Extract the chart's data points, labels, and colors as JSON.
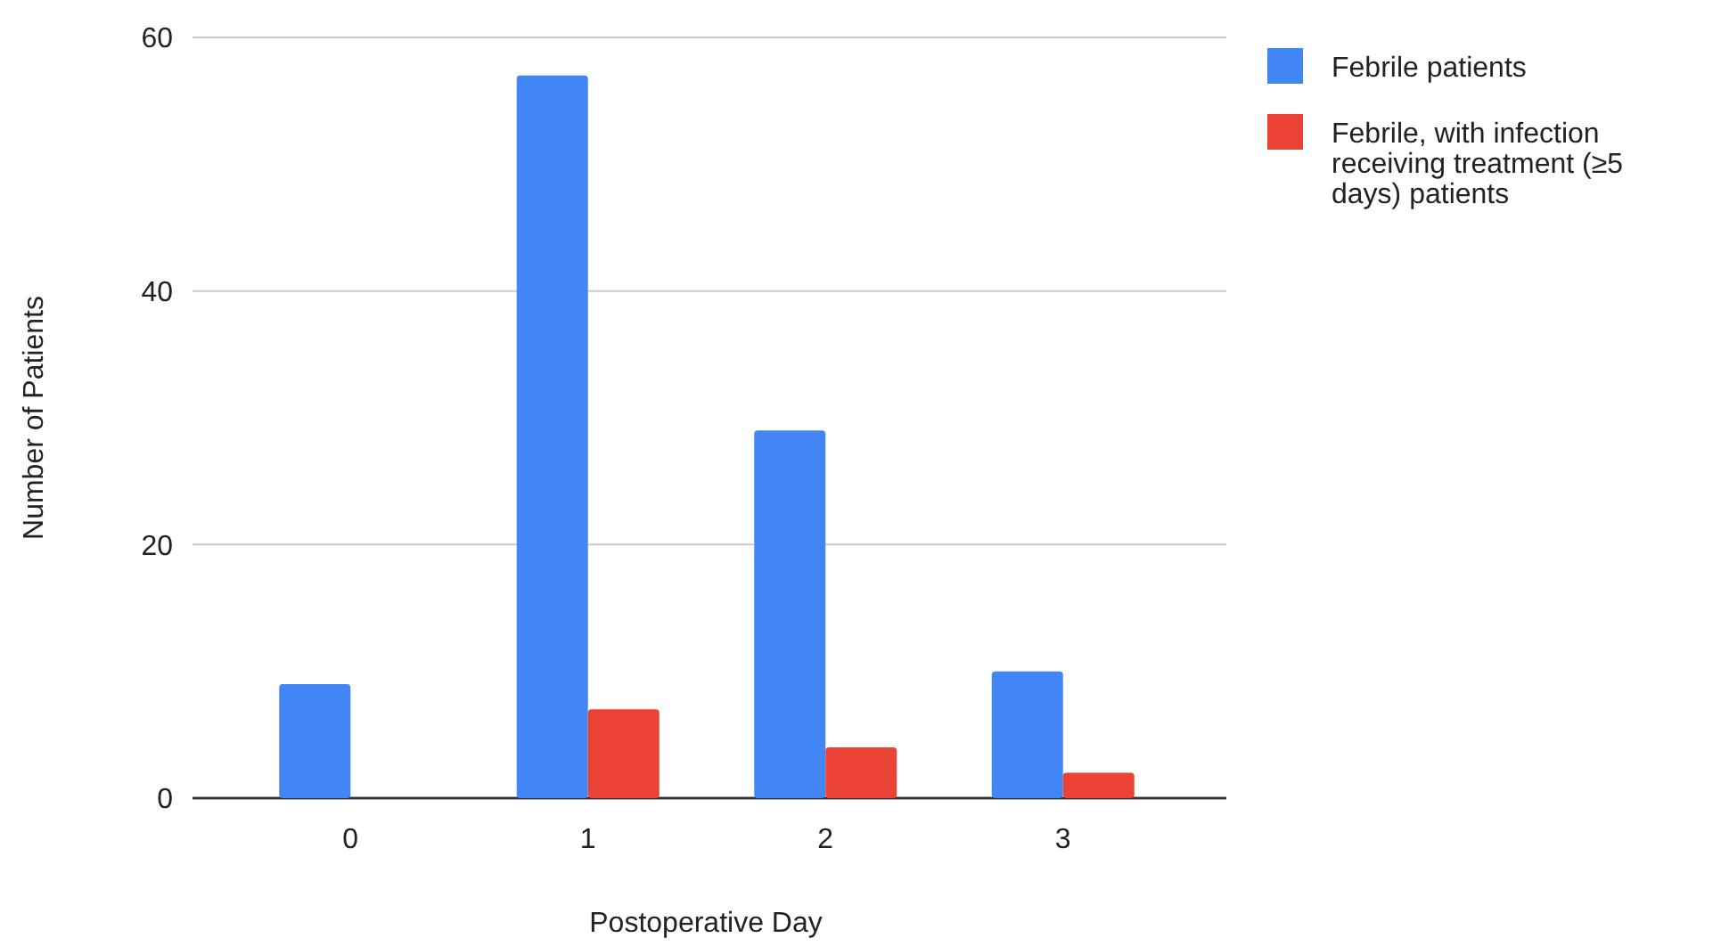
{
  "chart_data": {
    "type": "bar",
    "xlabel": "Postoperative Day",
    "ylabel": "Number of Patients",
    "categories": [
      "0",
      "1",
      "2",
      "3"
    ],
    "series": [
      {
        "name": "Febrile patients",
        "color": "#4285f4",
        "values": [
          9,
          57,
          29,
          10
        ]
      },
      {
        "name": "Febrile, with infection receiving treatment (≥5 days) patients",
        "color": "#ea4335",
        "values": [
          null,
          7,
          4,
          2
        ]
      }
    ],
    "ylim": [
      0,
      60
    ],
    "yticks": [
      0,
      20,
      40,
      60
    ],
    "grid": "y",
    "legend": "top right"
  }
}
